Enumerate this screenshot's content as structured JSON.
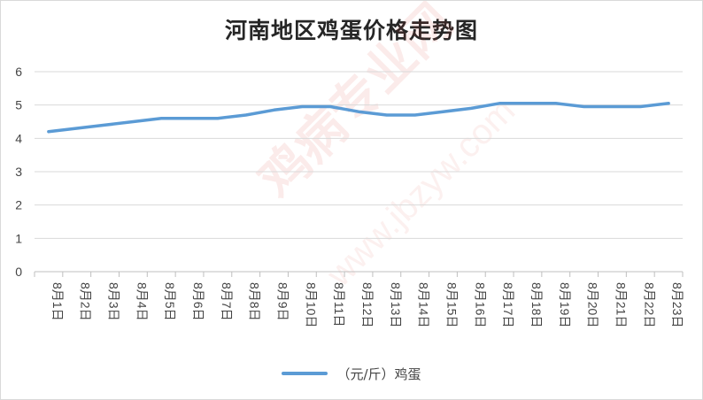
{
  "chart_data": {
    "type": "line",
    "title": "河南地区鸡蛋价格走势图",
    "xlabel": "",
    "ylabel": "",
    "categories": [
      "8月1日",
      "8月2日",
      "8月3日",
      "8月4日",
      "8月5日",
      "8月6日",
      "8月7日",
      "8月8日",
      "8月9日",
      "8月10日",
      "8月11日",
      "8月12日",
      "8月13日",
      "8月14日",
      "8月15日",
      "8月16日",
      "8月17日",
      "8月18日",
      "8月19日",
      "8月20日",
      "8月21日",
      "8月22日",
      "8月23日"
    ],
    "series": [
      {
        "name": "（元/斤）鸡蛋",
        "values": [
          4.2,
          4.3,
          4.4,
          4.5,
          4.6,
          4.6,
          4.6,
          4.7,
          4.85,
          4.95,
          4.95,
          4.8,
          4.7,
          4.7,
          4.8,
          4.9,
          5.05,
          5.05,
          5.05,
          4.95,
          4.95,
          4.95,
          5.05
        ]
      }
    ],
    "ylim": [
      0,
      6
    ],
    "yticks": [
      0,
      1,
      2,
      3,
      4,
      5,
      6
    ],
    "grid": true,
    "legend_position": "bottom",
    "colors": {
      "series": "#5b9bd5",
      "grid": "#d9d9d9",
      "axis": "#bfbfbf"
    }
  },
  "watermark": {
    "text": "鸡病专业网",
    "url": "www.jbzyw.com"
  }
}
